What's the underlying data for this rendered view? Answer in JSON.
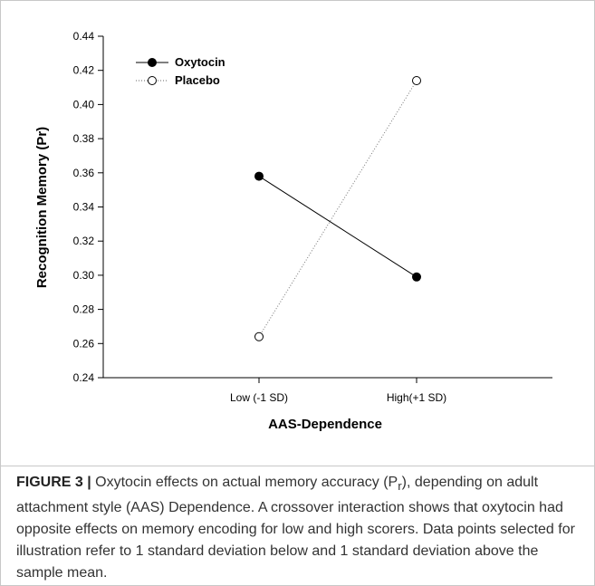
{
  "chart_data": {
    "type": "line",
    "categories": [
      "Low (-1 SD)",
      "High(+1 SD)"
    ],
    "series": [
      {
        "name": "Oxytocin",
        "values": [
          0.358,
          0.299
        ],
        "color": "#000000",
        "marker": "filled-circle",
        "line_style": "solid"
      },
      {
        "name": "Placebo",
        "values": [
          0.264,
          0.414
        ],
        "color": "#000000",
        "marker": "open-circle",
        "line_style": "dotted"
      }
    ],
    "xlabel": "AAS-Dependence",
    "ylabel": "Recognition Memory (Pr)",
    "ylim": [
      0.24,
      0.44
    ],
    "yticks": [
      "0.24",
      "0.26",
      "0.28",
      "0.30",
      "0.32",
      "0.34",
      "0.36",
      "0.38",
      "0.40",
      "0.42",
      "0.44"
    ],
    "grid": false,
    "legend_position": "top-left"
  },
  "caption": {
    "label": "FIGURE 3 |",
    "text_before": " Oxytocin effects on actual memory accuracy (P",
    "subscript": "r",
    "text_after": "), depending on adult attachment style (AAS) Dependence. A crossover interaction shows that oxytocin had opposite effects on memory encoding for low and high scorers. Data points selected for illustration refer to 1 standard deviation below and 1 standard deviation above the sample mean."
  }
}
